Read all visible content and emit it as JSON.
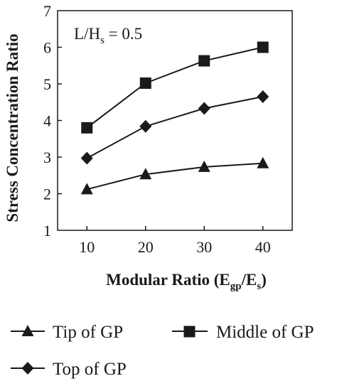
{
  "chart_data": {
    "type": "line",
    "x": [
      10,
      20,
      30,
      40
    ],
    "xlim": [
      5,
      45
    ],
    "ylim": [
      1,
      7
    ],
    "xticks": [
      "10",
      "20",
      "30",
      "40"
    ],
    "yticks": [
      "1",
      "2",
      "3",
      "4",
      "5",
      "6",
      "7"
    ],
    "xlabel": {
      "prefix": "Modular Ratio (E",
      "sub1": "gp",
      "mid": "/E",
      "sub2": "s",
      "suffix": ")"
    },
    "ylabel": "Stress Concentration Ratio",
    "annotation": {
      "prefix": "L/H",
      "sub": "s",
      "suffix": " = 0.5"
    },
    "grid": false,
    "legend_position": "bottom",
    "series": [
      {
        "name": "Tip of GP",
        "marker": "triangle",
        "values": [
          2.12,
          2.53,
          2.73,
          2.83
        ]
      },
      {
        "name": "Middle of GP",
        "marker": "square",
        "values": [
          3.8,
          5.02,
          5.63,
          6.0
        ]
      },
      {
        "name": "Top of GP",
        "marker": "diamond",
        "values": [
          2.97,
          3.84,
          4.33,
          4.65
        ]
      }
    ],
    "colors": {
      "line": "#1a1a1a"
    }
  }
}
